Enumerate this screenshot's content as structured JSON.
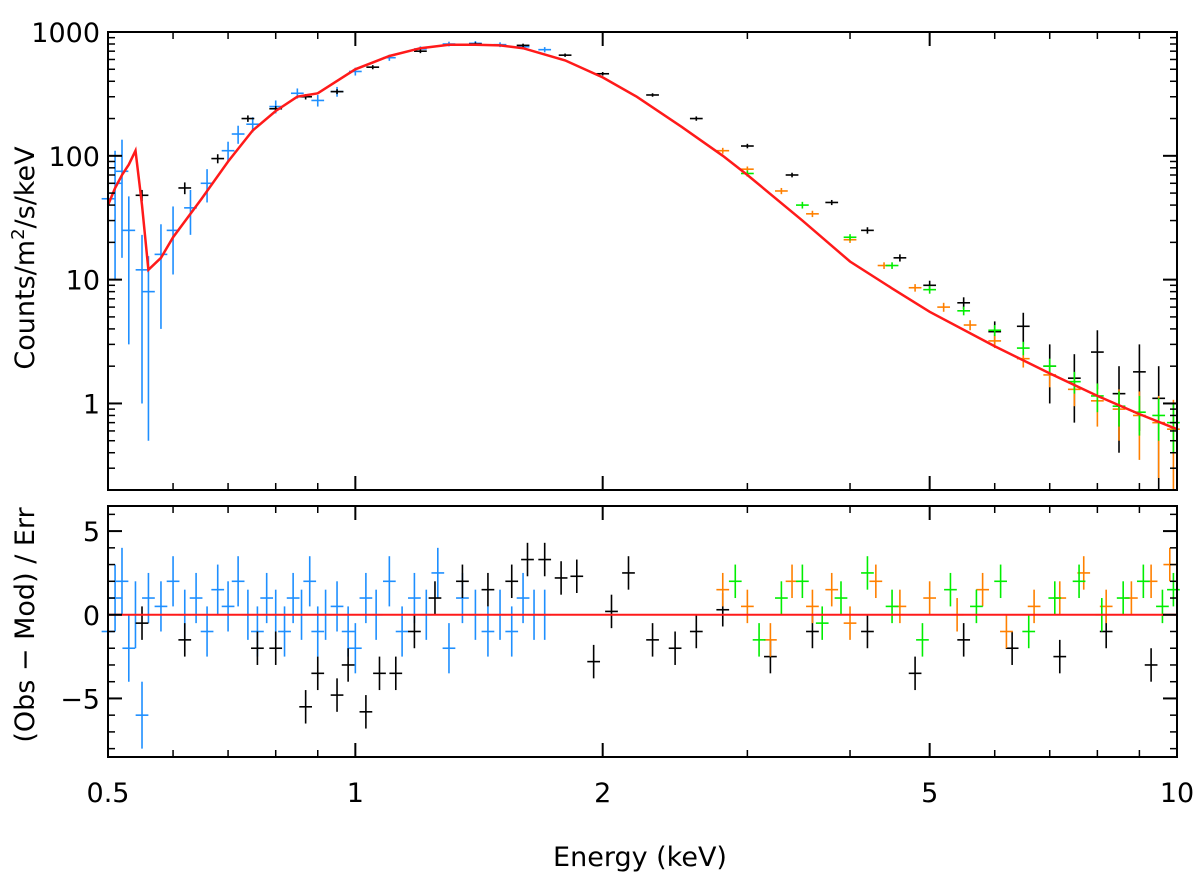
{
  "colors": {
    "model": "#ff1a1a",
    "blue_series": "#1e8fff",
    "black_series": "#000000",
    "orange_series": "#ff8000",
    "green_series": "#00ee00"
  },
  "chart_data": [
    {
      "panel": "spectrum",
      "type": "scatter",
      "xscale": "log",
      "yscale": "log",
      "xlim": [
        0.5,
        10
      ],
      "ylim": [
        0.2,
        1000
      ],
      "ylabel_parts": {
        "prefix": "Counts/m",
        "sup": "2",
        "suffix": "/s/keV"
      },
      "y_ticks": [
        "1",
        "10",
        "100",
        "1000"
      ],
      "model_curve": {
        "x": [
          0.5,
          0.51,
          0.52,
          0.53,
          0.54,
          0.55,
          0.56,
          0.58,
          0.6,
          0.65,
          0.7,
          0.75,
          0.8,
          0.85,
          0.9,
          1.0,
          1.1,
          1.2,
          1.3,
          1.4,
          1.5,
          1.6,
          1.8,
          2.0,
          2.2,
          2.5,
          2.8,
          3.0,
          3.5,
          4.0,
          4.5,
          5.0,
          6.0,
          7.0,
          8.0,
          9.0,
          10.0
        ],
        "y": [
          40,
          55,
          70,
          85,
          110,
          40,
          12,
          15,
          22,
          45,
          90,
          160,
          230,
          300,
          320,
          500,
          640,
          740,
          790,
          790,
          780,
          740,
          590,
          430,
          300,
          170,
          100,
          70,
          30,
          14,
          8.5,
          5.5,
          2.9,
          1.75,
          1.15,
          0.82,
          0.62
        ]
      },
      "series": [
        {
          "color_key": "blue_series",
          "x": [
            0.5,
            0.51,
            0.52,
            0.53,
            0.55,
            0.56,
            0.58,
            0.6,
            0.63,
            0.66,
            0.7,
            0.72,
            0.75,
            0.8,
            0.85,
            0.9,
            0.95,
            1.0,
            1.1,
            1.2,
            1.3,
            1.4,
            1.5,
            1.6,
            1.7
          ],
          "y": [
            45,
            60,
            75,
            25,
            12,
            8,
            16,
            25,
            38,
            60,
            110,
            150,
            180,
            250,
            320,
            280,
            330,
            480,
            620,
            730,
            800,
            810,
            790,
            760,
            720
          ],
          "yerr": [
            40,
            50,
            60,
            22,
            11,
            7.5,
            12,
            14,
            15,
            18,
            20,
            25,
            25,
            30,
            30,
            30,
            30,
            35,
            35,
            35,
            35,
            35,
            35,
            35,
            35
          ]
        },
        {
          "color_key": "black_series",
          "x": [
            0.55,
            0.62,
            0.68,
            0.74,
            0.8,
            0.87,
            0.95,
            1.05,
            1.2,
            1.4,
            1.6,
            1.8,
            2.0,
            2.3,
            2.6,
            3.0,
            3.4,
            3.8,
            4.2,
            4.6,
            5.0,
            5.5,
            6.0,
            6.5,
            7.0,
            7.5,
            8.0,
            8.5,
            9.0,
            9.5
          ],
          "y": [
            48,
            55,
            95,
            200,
            240,
            300,
            330,
            520,
            700,
            800,
            780,
            650,
            460,
            310,
            200,
            120,
            70,
            42,
            25,
            15,
            9,
            6.5,
            3.8,
            4.2,
            2.0,
            1.6,
            2.6,
            1.2,
            1.8,
            1.1
          ],
          "yerr": [
            5,
            6,
            8,
            12,
            12,
            15,
            15,
            20,
            25,
            25,
            25,
            20,
            15,
            10,
            8,
            5,
            3,
            2,
            1.5,
            1,
            0.8,
            0.7,
            0.8,
            1.2,
            1.0,
            0.9,
            1.3,
            0.8,
            1.2,
            0.9
          ]
        },
        {
          "color_key": "orange_series",
          "x": [
            2.8,
            3.0,
            3.3,
            3.6,
            4.0,
            4.4,
            4.8,
            5.2,
            5.6,
            6.0,
            6.5,
            7.0,
            7.5,
            8.0,
            8.5,
            9.0,
            9.5,
            9.9
          ],
          "y": [
            110,
            78,
            52,
            34,
            21,
            13,
            8.6,
            6.0,
            4.3,
            3.2,
            2.3,
            1.7,
            1.3,
            1.05,
            0.9,
            0.8,
            0.7,
            0.62
          ],
          "yerr": [
            6,
            4,
            3,
            2,
            1.2,
            0.8,
            0.6,
            0.5,
            0.4,
            0.4,
            0.35,
            0.35,
            0.35,
            0.4,
            0.4,
            0.45,
            0.45,
            0.45
          ]
        },
        {
          "color_key": "green_series",
          "x": [
            3.0,
            3.5,
            4.0,
            4.5,
            5.0,
            5.5,
            6.0,
            6.5,
            7.0,
            7.5,
            8.0,
            8.5,
            9.0,
            9.5,
            9.9
          ],
          "y": [
            72,
            40,
            22,
            13,
            8.3,
            5.6,
            3.9,
            2.8,
            2.0,
            1.5,
            1.15,
            0.95,
            0.85,
            0.8,
            0.7
          ],
          "yerr": [
            4,
            2.5,
            1.3,
            0.8,
            0.6,
            0.45,
            0.4,
            0.35,
            0.3,
            0.3,
            0.3,
            0.3,
            0.3,
            0.3,
            0.3
          ]
        }
      ]
    },
    {
      "panel": "residuals",
      "type": "scatter",
      "xscale": "log",
      "xlim": [
        0.5,
        10
      ],
      "ylim": [
        -8.5,
        6.5
      ],
      "x_ticks": [
        "0.5",
        "1",
        "2",
        "5",
        "10"
      ],
      "y_ticks": [
        "5",
        "0",
        "−5"
      ],
      "xlabel": "Energy (keV)",
      "ylabel": "(Obs − Mod) / Err",
      "reference_line_y": 0,
      "series": [
        {
          "color_key": "blue_series",
          "x": [
            0.5,
            0.51,
            0.52,
            0.53,
            0.54,
            0.55,
            0.56,
            0.58,
            0.6,
            0.62,
            0.64,
            0.66,
            0.68,
            0.7,
            0.72,
            0.74,
            0.76,
            0.78,
            0.8,
            0.82,
            0.84,
            0.86,
            0.88,
            0.9,
            0.92,
            0.95,
            0.98,
            1.0,
            1.03,
            1.06,
            1.1,
            1.14,
            1.18,
            1.22,
            1.26,
            1.3,
            1.35,
            1.4,
            1.45,
            1.5,
            1.55,
            1.6,
            1.65,
            1.7
          ],
          "y": [
            -1,
            1,
            2,
            -2,
            0,
            -6,
            1,
            0.5,
            2,
            0,
            1,
            -1,
            1.5,
            0.5,
            2,
            0,
            -1,
            1,
            0,
            -1,
            1,
            0,
            2,
            -1,
            0,
            0.5,
            -1,
            -2,
            1,
            0,
            2,
            -1,
            1,
            0,
            2.5,
            -2,
            1,
            0,
            -1,
            0,
            -1,
            1,
            0,
            0
          ],
          "yerr": [
            2,
            2,
            2,
            2,
            2,
            2,
            1.5,
            1.5,
            1.5,
            1.5,
            1.5,
            1.5,
            1.5,
            1.5,
            1.5,
            1.5,
            1.5,
            1.5,
            1.5,
            1.5,
            1.5,
            1.5,
            1.5,
            1.5,
            1.5,
            1.5,
            1.5,
            1.5,
            1.5,
            1.5,
            1.5,
            1.5,
            1.5,
            1.5,
            1.5,
            1.5,
            1.5,
            1.5,
            1.5,
            1.5,
            1.5,
            1.5,
            1.5,
            1.5
          ]
        },
        {
          "color_key": "black_series",
          "x": [
            0.55,
            0.62,
            0.76,
            0.8,
            0.87,
            0.9,
            0.95,
            0.98,
            1.03,
            1.07,
            1.12,
            1.18,
            1.25,
            1.35,
            1.45,
            1.55,
            1.62,
            1.7,
            1.78,
            1.86,
            1.95,
            2.05,
            2.15,
            2.3,
            2.45,
            2.6,
            2.8,
            3.2,
            3.6,
            4.2,
            4.8,
            5.5,
            6.3,
            7.2,
            8.2,
            9.3
          ],
          "y": [
            -0.5,
            -1.5,
            -2.0,
            -2.0,
            -5.5,
            -3.5,
            -4.8,
            -3.0,
            -5.8,
            -3.5,
            -3.5,
            -1.0,
            1.0,
            2.0,
            1.5,
            2.0,
            3.3,
            3.3,
            2.2,
            2.3,
            -2.8,
            0.2,
            2.5,
            -1.5,
            -2.0,
            -1.0,
            0.3,
            -2.5,
            -1.0,
            -1.0,
            -3.5,
            -1.5,
            -2.0,
            -2.5,
            -1.0,
            -3.0
          ],
          "yerr": [
            1,
            1,
            1,
            1,
            1,
            1,
            1,
            1,
            1,
            1,
            1,
            1,
            1,
            1,
            1,
            1,
            1,
            1,
            1,
            1,
            1,
            1,
            1,
            1,
            1,
            1,
            1,
            1,
            1,
            1,
            1,
            1,
            1,
            1,
            1,
            1
          ]
        },
        {
          "color_key": "orange_series",
          "x": [
            2.8,
            3.0,
            3.2,
            3.4,
            3.6,
            3.8,
            4.0,
            4.3,
            4.6,
            5.0,
            5.4,
            5.8,
            6.2,
            6.7,
            7.2,
            7.7,
            8.2,
            8.8,
            9.3,
            9.8
          ],
          "y": [
            1.5,
            0.5,
            -1.5,
            2.0,
            0.5,
            1.5,
            -0.5,
            2.0,
            0.5,
            1.0,
            0.0,
            1.5,
            -1.0,
            0.5,
            1.0,
            2.5,
            0.5,
            1.0,
            2.0,
            3.0
          ],
          "yerr": [
            1,
            1,
            1,
            1,
            1,
            1,
            1,
            1,
            1,
            1,
            1,
            1,
            1,
            1,
            1,
            1,
            1,
            1,
            1,
            1
          ]
        },
        {
          "color_key": "green_series",
          "x": [
            2.9,
            3.1,
            3.3,
            3.5,
            3.7,
            3.9,
            4.2,
            4.5,
            4.9,
            5.3,
            5.7,
            6.1,
            6.6,
            7.1,
            7.6,
            8.1,
            8.6,
            9.1,
            9.6,
            9.9
          ],
          "y": [
            2.0,
            -1.5,
            1.0,
            2.0,
            -0.5,
            1.0,
            2.5,
            0.5,
            -1.5,
            1.5,
            0.5,
            2.0,
            -1.0,
            1.0,
            2.0,
            0.0,
            1.0,
            2.0,
            0.5,
            1.5
          ],
          "yerr": [
            1,
            1,
            1,
            1,
            1,
            1,
            1,
            1,
            1,
            1,
            1,
            1,
            1,
            1,
            1,
            1,
            1,
            1,
            1,
            1
          ]
        }
      ]
    }
  ]
}
